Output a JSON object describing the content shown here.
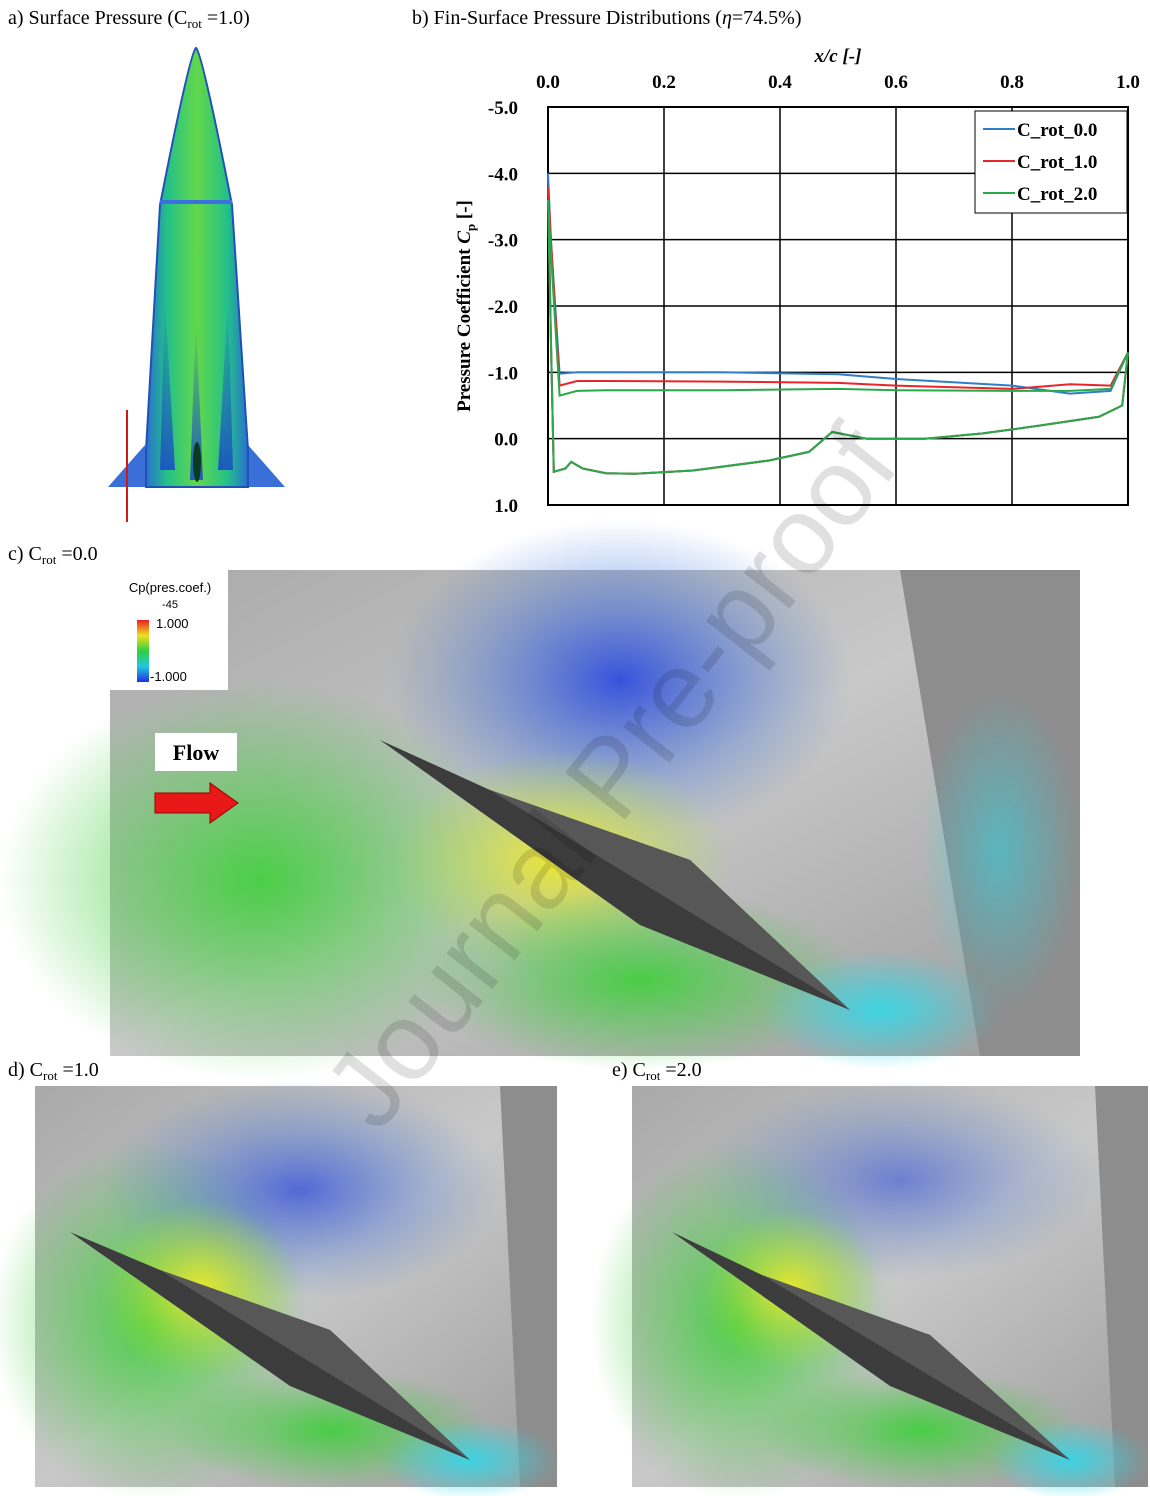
{
  "panels": {
    "a": {
      "label": "a)",
      "title": "Surface Pressure (C",
      "sub": "rot",
      "title_end": " =1.0)"
    },
    "b": {
      "label": "b)",
      "title": "Fin-Surface Pressure Distributions (",
      "eta": "η",
      "title_end": "=74.5%)"
    },
    "c": {
      "label": "c)",
      "title": "C",
      "sub": "rot",
      "title_end": " =0.0"
    },
    "d": {
      "label": "d)",
      "title": "C",
      "sub": "rot",
      "title_end": " =1.0"
    },
    "e": {
      "label": "e)",
      "title": "C",
      "sub": "rot",
      "title_end": " =2.0"
    }
  },
  "colorbar": {
    "title": "Cp(pres.coef.)",
    "subtitle": "-45",
    "max": "1.000",
    "min": "-1.000"
  },
  "flow_label": "Flow",
  "watermark": "Journal Pre-proof",
  "chart_data": {
    "type": "line",
    "x_label": "x/c [-]",
    "y_label": {
      "text": "Pressure Coefficient ",
      "symbol": "C",
      "sub": "p",
      "unit": " [-]"
    },
    "x": [
      1.0,
      0.97,
      0.9,
      0.8,
      0.6,
      0.5,
      0.3,
      0.1,
      0.05,
      0.02,
      0.005,
      0.0,
      0.005,
      0.01,
      0.03,
      0.04,
      0.06,
      0.1,
      0.15,
      0.25,
      0.38,
      0.45,
      0.49,
      0.55,
      0.65,
      0.75,
      0.85,
      0.95,
      0.99,
      1.0
    ],
    "series": [
      {
        "name": "C_rot_0.0",
        "color": "#2f7fc8",
        "values": [
          -1.3,
          -0.72,
          -0.68,
          -0.8,
          -0.9,
          -0.97,
          -1.0,
          -1.0,
          -1.0,
          -0.98,
          -3.0,
          -4.0,
          -1.5,
          0.5,
          0.45,
          0.35,
          0.45,
          0.52,
          0.53,
          0.48,
          0.33,
          0.2,
          -0.1,
          0.0,
          0.0,
          -0.08,
          -0.2,
          -0.33,
          -0.5,
          -1.3
        ]
      },
      {
        "name": "C_rot_1.0",
        "color": "#e8262a",
        "values": [
          -1.3,
          -0.8,
          -0.82,
          -0.75,
          -0.8,
          -0.84,
          -0.86,
          -0.87,
          -0.87,
          -0.8,
          -3.0,
          -3.8,
          -1.5,
          0.5,
          0.45,
          0.35,
          0.45,
          0.52,
          0.53,
          0.48,
          0.33,
          0.2,
          -0.1,
          0.0,
          0.0,
          -0.08,
          -0.2,
          -0.33,
          -0.5,
          -1.3
        ]
      },
      {
        "name": "C_rot_2.0",
        "color": "#2aa84a",
        "values": [
          -1.3,
          -0.75,
          -0.72,
          -0.72,
          -0.73,
          -0.75,
          -0.73,
          -0.73,
          -0.72,
          -0.65,
          -2.8,
          -3.6,
          -1.5,
          0.5,
          0.45,
          0.35,
          0.45,
          0.52,
          0.53,
          0.48,
          0.33,
          0.2,
          -0.1,
          0.0,
          0.0,
          -0.08,
          -0.2,
          -0.33,
          -0.5,
          -1.3
        ]
      }
    ],
    "xlim": [
      0.0,
      1.0
    ],
    "xticks": [
      {
        "value": 0.0,
        "label": "0.0"
      },
      {
        "value": 0.2,
        "label": "0.2"
      },
      {
        "value": 0.4,
        "label": "0.4"
      },
      {
        "value": 0.6,
        "label": "0.6"
      },
      {
        "value": 0.8,
        "label": "0.8"
      },
      {
        "value": 1.0,
        "label": "1.0"
      }
    ],
    "ylim": [
      -5.0,
      1.0
    ],
    "y_reversed": true,
    "yticks": [
      {
        "value": -5.0,
        "label": "-5.0"
      },
      {
        "value": -4.0,
        "label": "-4.0"
      },
      {
        "value": -3.0,
        "label": "-3.0"
      },
      {
        "value": -2.0,
        "label": "-2.0"
      },
      {
        "value": -1.0,
        "label": "-1.0"
      },
      {
        "value": 0.0,
        "label": "0.0"
      },
      {
        "value": 1.0,
        "label": "1.0"
      }
    ],
    "grid": true,
    "legend": "upper-right"
  }
}
